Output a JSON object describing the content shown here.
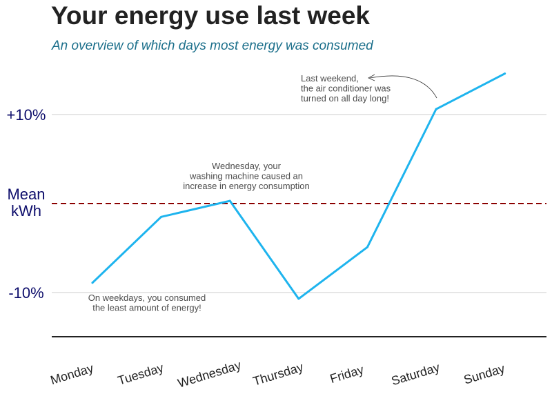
{
  "title": "Your energy use last week",
  "subtitle": "An overview of which days most energy was consumed",
  "colors": {
    "line": "#1eb4ee",
    "mean_line": "#8b0000",
    "grid": "#cccccc",
    "axis": "#222222",
    "ytick_text": "#0d0d6b",
    "subtitle": "#1a6e8a"
  },
  "chart_data": {
    "type": "line",
    "categories": [
      "Monday",
      "Tuesday",
      "Wednesday",
      "Thursday",
      "Friday",
      "Saturday",
      "Sunday"
    ],
    "y_unit": "% vs mean kWh",
    "values": [
      -8.9,
      -1.5,
      0.3,
      -10.7,
      -4.9,
      10.6,
      14.6
    ],
    "ylim": [
      -15,
      17
    ],
    "y_ticks": [
      {
        "value": 10,
        "label": "+10%"
      },
      {
        "value": 0,
        "label": "Mean kWh"
      },
      {
        "value": -10,
        "label": "-10%"
      }
    ],
    "reference_line": {
      "value": 0,
      "style": "dashed"
    },
    "grid": "horizontal",
    "legend": "none",
    "annotations": [
      {
        "text": [
          "On weekdays, you consumed",
          "the least amount of energy!"
        ],
        "category": "Monday"
      },
      {
        "text": [
          "Wednesday, your",
          "washing machine caused an",
          "increase in energy consumption"
        ],
        "category": "Wednesday"
      },
      {
        "text": [
          "Last weekend,",
          "the air conditioner was",
          "turned on all day long!"
        ],
        "category": "Saturday",
        "arrow": true
      }
    ]
  }
}
